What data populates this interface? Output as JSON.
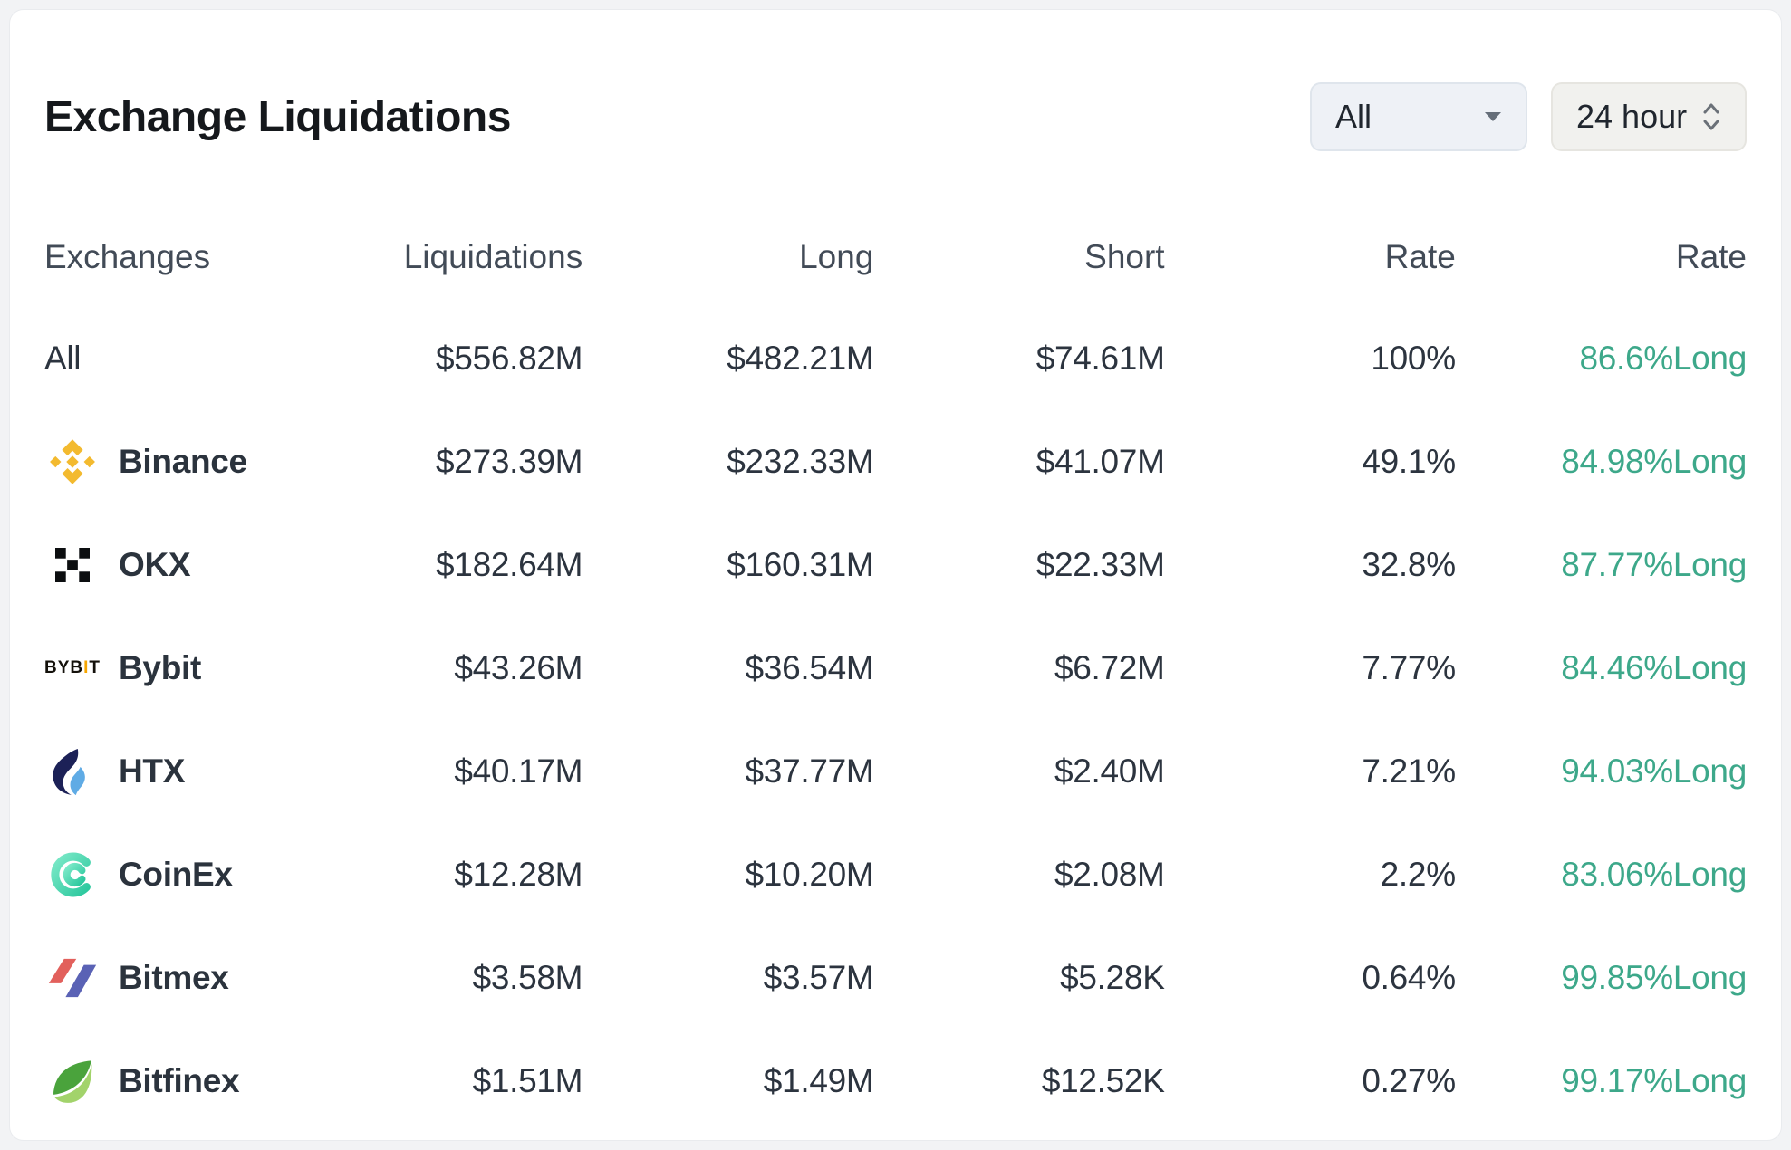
{
  "card": {
    "title": "Exchange Liquidations",
    "filters": {
      "exchange": {
        "value": "All"
      },
      "period": {
        "value": "24 hour"
      }
    },
    "table": {
      "columns": [
        "Exchanges",
        "Liquidations",
        "Long",
        "Short",
        "Rate",
        "Rate"
      ],
      "rows": [
        {
          "name": "All",
          "icon": null,
          "liquidations": "$556.82M",
          "long": "$482.21M",
          "short": "$74.61M",
          "rate": "100%",
          "long_rate": "86.6%Long"
        },
        {
          "name": "Binance",
          "icon": "binance-icon",
          "liquidations": "$273.39M",
          "long": "$232.33M",
          "short": "$41.07M",
          "rate": "49.1%",
          "long_rate": "84.98%Long"
        },
        {
          "name": "OKX",
          "icon": "okx-icon",
          "liquidations": "$182.64M",
          "long": "$160.31M",
          "short": "$22.33M",
          "rate": "32.8%",
          "long_rate": "87.77%Long"
        },
        {
          "name": "Bybit",
          "icon": "bybit-icon",
          "liquidations": "$43.26M",
          "long": "$36.54M",
          "short": "$6.72M",
          "rate": "7.77%",
          "long_rate": "84.46%Long"
        },
        {
          "name": "HTX",
          "icon": "htx-icon",
          "liquidations": "$40.17M",
          "long": "$37.77M",
          "short": "$2.40M",
          "rate": "7.21%",
          "long_rate": "94.03%Long"
        },
        {
          "name": "CoinEx",
          "icon": "coinex-icon",
          "liquidations": "$12.28M",
          "long": "$10.20M",
          "short": "$2.08M",
          "rate": "2.2%",
          "long_rate": "83.06%Long"
        },
        {
          "name": "Bitmex",
          "icon": "bitmex-icon",
          "liquidations": "$3.58M",
          "long": "$3.57M",
          "short": "$5.28K",
          "rate": "0.64%",
          "long_rate": "99.85%Long"
        },
        {
          "name": "Bitfinex",
          "icon": "bitfinex-icon",
          "liquidations": "$1.51M",
          "long": "$1.49M",
          "short": "$12.52K",
          "rate": "0.27%",
          "long_rate": "99.17%Long"
        }
      ]
    },
    "colors": {
      "long_rate_green": "#3da88a",
      "binance_gold": "#f3ba2f",
      "okx_black": "#0c0e10",
      "bybit_orange": "#f7a600",
      "htx_navy": "#1c2157",
      "htx_blue": "#5fabe5",
      "coinex_teal": "#2cc89e",
      "bitmex_red": "#e2605c",
      "bitmex_blue": "#5a62b5",
      "bitfinex_green_dark": "#4aa33c",
      "bitfinex_green_light": "#a2d36b"
    }
  }
}
